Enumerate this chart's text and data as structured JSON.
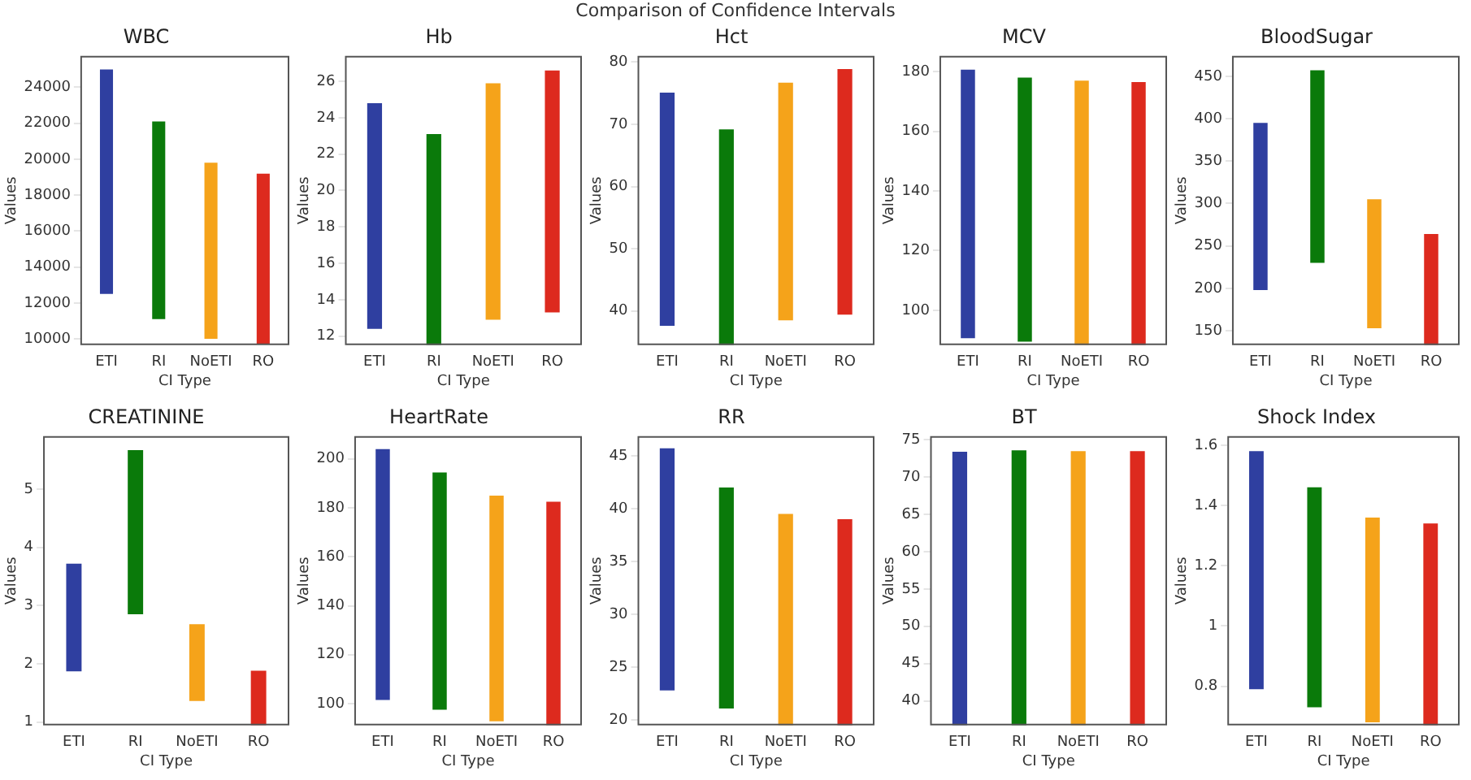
{
  "chart_data": [
    {
      "type": "bar",
      "title": "WBC",
      "xlabel": "CI Type",
      "ylabel": "Values",
      "annotations": [
        "Comparison of Confidence Intervals"
      ],
      "categories": [
        "ETI",
        "RI",
        "NoETI",
        "RO"
      ],
      "base": [
        12500,
        11100,
        10000,
        9700
      ],
      "values": [
        12500,
        11000,
        9800,
        9500
      ],
      "colors": [
        "#2f3fa0",
        "#0a7a0a",
        "#f5a31a",
        "#dd2a1e"
      ],
      "ylim": [
        9650,
        25750
      ],
      "yticks": [
        10000,
        12000,
        14000,
        16000,
        18000,
        20000,
        22000,
        24000
      ]
    },
    {
      "type": "bar",
      "title": "Hb",
      "xlabel": "CI Type",
      "ylabel": "Values",
      "categories": [
        "ETI",
        "RI",
        "NoETI",
        "RO"
      ],
      "base": [
        12.4,
        11.5,
        12.9,
        13.3
      ],
      "values": [
        12.4,
        11.6,
        13.0,
        13.3
      ],
      "colors": [
        "#2f3fa0",
        "#0a7a0a",
        "#f5a31a",
        "#dd2a1e"
      ],
      "ylim": [
        11.5,
        27.4
      ],
      "yticks": [
        12,
        14,
        16,
        18,
        20,
        22,
        24,
        26
      ]
    },
    {
      "type": "bar",
      "title": "Hct",
      "xlabel": "CI Type",
      "ylabel": "Values",
      "categories": [
        "ETI",
        "RI",
        "NoETI",
        "RO"
      ],
      "base": [
        37.6,
        34.5,
        38.5,
        39.4
      ],
      "values": [
        37.5,
        34.7,
        38.2,
        39.5
      ],
      "colors": [
        "#2f3fa0",
        "#0a7a0a",
        "#f5a31a",
        "#dd2a1e"
      ],
      "ylim": [
        34.5,
        81
      ],
      "yticks": [
        40,
        50,
        60,
        70,
        80
      ]
    },
    {
      "type": "bar",
      "title": "MCV",
      "xlabel": "CI Type",
      "ylabel": "Values",
      "categories": [
        "ETI",
        "RI",
        "NoETI",
        "RO"
      ],
      "base": [
        90.6,
        89.5,
        88.3,
        88.3
      ],
      "values": [
        90.1,
        88.5,
        88.7,
        88.2
      ],
      "colors": [
        "#2f3fa0",
        "#0a7a0a",
        "#f5a31a",
        "#dd2a1e"
      ],
      "ylim": [
        88.3,
        185.3
      ],
      "yticks": [
        100,
        120,
        140,
        160,
        180
      ]
    },
    {
      "type": "bar",
      "title": "BloodSugar",
      "xlabel": "CI Type",
      "ylabel": "Values",
      "categories": [
        "ETI",
        "RI",
        "NoETI",
        "RO"
      ],
      "base": [
        198,
        230,
        153,
        133
      ],
      "values": [
        197,
        227,
        152,
        131
      ],
      "colors": [
        "#2f3fa0",
        "#0a7a0a",
        "#f5a31a",
        "#dd2a1e"
      ],
      "ylim": [
        133,
        474
      ],
      "yticks": [
        150,
        200,
        250,
        300,
        350,
        400,
        450
      ]
    },
    {
      "type": "bar",
      "title": "CREATININE",
      "xlabel": "CI Type",
      "ylabel": "Values",
      "categories": [
        "ETI",
        "RI",
        "NoETI",
        "RO"
      ],
      "base": [
        1.87,
        2.85,
        1.36,
        0.94
      ],
      "values": [
        1.85,
        2.82,
        1.32,
        0.94
      ],
      "colors": [
        "#2f3fa0",
        "#0a7a0a",
        "#f5a31a",
        "#dd2a1e"
      ],
      "ylim": [
        0.94,
        5.91
      ],
      "yticks": [
        1,
        2,
        3,
        4,
        5
      ]
    },
    {
      "type": "bar",
      "title": "HeartRate",
      "xlabel": "CI Type",
      "ylabel": "Values",
      "categories": [
        "ETI",
        "RI",
        "NoETI",
        "RO"
      ],
      "base": [
        101.5,
        97.5,
        92.8,
        91.1
      ],
      "values": [
        102.5,
        97,
        92.2,
        91.4
      ],
      "colors": [
        "#2f3fa0",
        "#0a7a0a",
        "#f5a31a",
        "#dd2a1e"
      ],
      "ylim": [
        91.1,
        209.3
      ],
      "yticks": [
        100,
        120,
        140,
        160,
        180,
        200
      ]
    },
    {
      "type": "bar",
      "title": "RR",
      "xlabel": "CI Type",
      "ylabel": "Values",
      "categories": [
        "ETI",
        "RI",
        "NoETI",
        "RO"
      ],
      "base": [
        22.8,
        21.1,
        19.5,
        19.5
      ],
      "values": [
        22.9,
        20.9,
        20,
        19.5
      ],
      "colors": [
        "#2f3fa0",
        "#0a7a0a",
        "#f5a31a",
        "#dd2a1e"
      ],
      "ylim": [
        19.5,
        46.85
      ],
      "yticks": [
        20,
        25,
        30,
        35,
        40,
        45
      ]
    },
    {
      "type": "bar",
      "title": "BT",
      "xlabel": "CI Type",
      "ylabel": "Values",
      "categories": [
        "ETI",
        "RI",
        "NoETI",
        "RO"
      ],
      "base": [
        36.7,
        36.7,
        36.7,
        36.7
      ],
      "values": [
        36.7,
        36.9,
        36.8,
        36.8
      ],
      "colors": [
        "#2f3fa0",
        "#0a7a0a",
        "#f5a31a",
        "#dd2a1e"
      ],
      "ylim": [
        36.7,
        75.5
      ],
      "yticks": [
        40,
        45,
        50,
        55,
        60,
        65,
        70,
        75
      ]
    },
    {
      "type": "bar",
      "title": "Shock Index",
      "xlabel": "CI Type",
      "ylabel": "Values",
      "categories": [
        "ETI",
        "RI",
        "NoETI",
        "RO"
      ],
      "base": [
        0.79,
        0.73,
        0.68,
        0.67
      ],
      "values": [
        0.79,
        0.73,
        0.68,
        0.67
      ],
      "colors": [
        "#2f3fa0",
        "#0a7a0a",
        "#f5a31a",
        "#dd2a1e"
      ],
      "ylim": [
        0.67,
        1.63
      ],
      "yticks": [
        0.8,
        1.0,
        1.2,
        1.4,
        1.6
      ]
    }
  ]
}
